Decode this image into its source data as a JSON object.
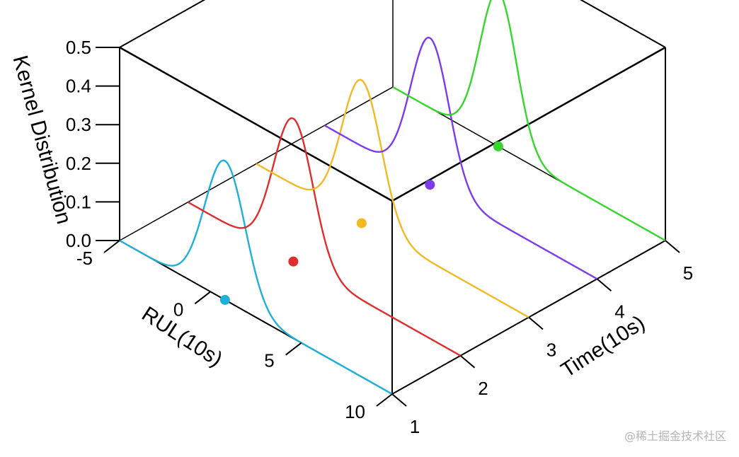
{
  "chart_data": {
    "type": "line",
    "title": "",
    "axes": {
      "rul": {
        "label": "RUL(10s)",
        "ticks": [
          "-5",
          "0",
          "5",
          "10"
        ],
        "range": [
          -5,
          10
        ]
      },
      "time": {
        "label": "Time(10s)",
        "ticks": [
          "1",
          "2",
          "3",
          "4",
          "5"
        ],
        "range": [
          1,
          5
        ]
      },
      "kernel": {
        "label": "Kernel Distribution",
        "ticks": [
          "0.0",
          "0.1",
          "0.2",
          "0.3",
          "0.4",
          "0.5"
        ],
        "range": [
          0,
          0.5
        ]
      }
    },
    "series": [
      {
        "time": 1,
        "color": "#1FB0D8",
        "mean_rul": 0.8,
        "peak": 0.36,
        "point_rul": 0.8
      },
      {
        "time": 2,
        "color": "#E02D2D",
        "mean_rul": 0.8,
        "peak": 0.37,
        "point_rul": 0.8
      },
      {
        "time": 3,
        "color": "#F3B923",
        "mean_rul": 0.8,
        "peak": 0.37,
        "point_rul": 0.8
      },
      {
        "time": 4,
        "color": "#7D3BEA",
        "mean_rul": 0.8,
        "peak": 0.38,
        "point_rul": 0.8
      },
      {
        "time": 5,
        "color": "#36D62D",
        "mean_rul": 0.8,
        "peak": 0.4,
        "point_rul": 0.8
      }
    ]
  },
  "watermark": "@稀土掘金技术社区"
}
